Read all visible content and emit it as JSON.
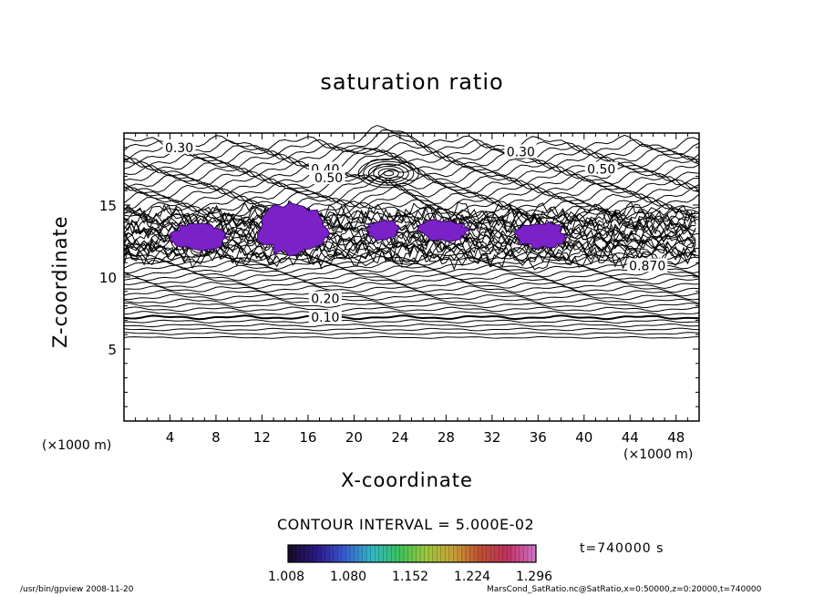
{
  "chart_data": {
    "type": "contour",
    "title": "saturation ratio",
    "xlabel": "X-coordinate",
    "ylabel": "Z-coordinate",
    "x_unit_label": "(×1000 m)",
    "x_range": [
      0,
      50
    ],
    "y_range": [
      0,
      20
    ],
    "x_ticks": [
      4,
      8,
      12,
      16,
      20,
      24,
      28,
      32,
      36,
      40,
      44,
      48
    ],
    "y_ticks": [
      5,
      10,
      15
    ],
    "contour_interval_text": "CONTOUR INTERVAL = 5.000E-02",
    "contour_labels": [
      {
        "text": "0.30",
        "x": 4.8,
        "z": 19.0
      },
      {
        "text": "0.30",
        "x": 34.5,
        "z": 18.7
      },
      {
        "text": "0.50",
        "x": 41.5,
        "z": 17.5
      },
      {
        "text": "0.40",
        "x": 17.5,
        "z": 17.5
      },
      {
        "text": "0.50",
        "x": 17.8,
        "z": 16.9
      },
      {
        "text": "0.870",
        "x": 45.5,
        "z": 10.8
      },
      {
        "text": "0.20",
        "x": 17.5,
        "z": 8.5
      },
      {
        "text": "0.10",
        "x": 17.5,
        "z": 7.2
      }
    ],
    "supersaturated_regions": [
      {
        "x": [
          4,
          9
        ],
        "z": [
          11.8,
          13.8
        ]
      },
      {
        "x": [
          11.5,
          18
        ],
        "z": [
          11.5,
          15.2
        ]
      },
      {
        "x": [
          21,
          24
        ],
        "z": [
          12.5,
          14
        ]
      },
      {
        "x": [
          25.5,
          30
        ],
        "z": [
          12.5,
          14
        ]
      },
      {
        "x": [
          34,
          38.5
        ],
        "z": [
          12,
          13.8
        ]
      }
    ],
    "colorbar": {
      "min": 1.008,
      "max": 1.296,
      "tick_labels": [
        "1.008",
        "1.080",
        "1.152",
        "1.224",
        "1.296"
      ],
      "colors": [
        "#1a0a2e",
        "#2a1a8a",
        "#3a5ad0",
        "#30b8c8",
        "#3cc060",
        "#9ac83a",
        "#c8a03a",
        "#c05030",
        "#c03060",
        "#d070c0"
      ]
    },
    "time_label": "t=740000 s"
  },
  "footer": {
    "left": "/usr/bin/gpview   2008-11-20",
    "right": "MarsCond_SatRatio.nc@SatRatio,x=0:50000,z=0:20000,t=740000"
  }
}
